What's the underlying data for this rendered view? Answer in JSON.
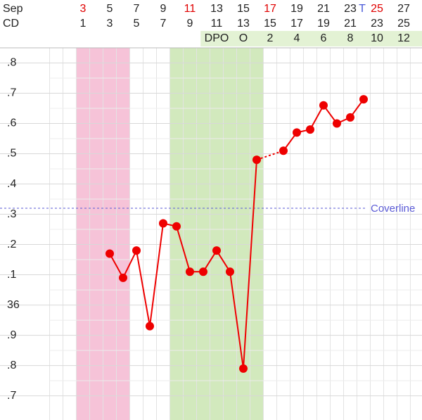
{
  "chart_data": {
    "type": "line",
    "month": "Sep",
    "cd_title": "CD",
    "xlim": [
      0.5,
      28.37
    ],
    "xticks": [
      3,
      5,
      7,
      9,
      11,
      13,
      15,
      17,
      19,
      21,
      23,
      25,
      27
    ],
    "xtick_colors": [
      "#e00000",
      "#222",
      "#222",
      "#222",
      "#e00000",
      "#222",
      "#222",
      "#e00000",
      "#222",
      "#222",
      "#222",
      "#e00000",
      "#222"
    ],
    "cd_labels": [
      1,
      3,
      5,
      7,
      9,
      11,
      13,
      15,
      17,
      19,
      21,
      23,
      25
    ],
    "dpo_labels": [
      "DPO",
      "O",
      2,
      4,
      6,
      8,
      10,
      12
    ],
    "temp_marker": {
      "x": 24,
      "label": "T",
      "color": "#4a5ad8"
    },
    "ylim": [
      35.62,
      36.85
    ],
    "yticks": [
      {
        "value": 36.8,
        "label": ".8"
      },
      {
        "value": 36.7,
        "label": ".7"
      },
      {
        "value": 36.6,
        "label": ".6"
      },
      {
        "value": 36.5,
        "label": ".5"
      },
      {
        "value": 36.4,
        "label": ".4"
      },
      {
        "value": 36.3,
        "label": ".3"
      },
      {
        "value": 36.2,
        "label": ".2"
      },
      {
        "value": 36.1,
        "label": ".1"
      },
      36,
      {
        "value": 35.9,
        "label": ".9"
      },
      {
        "value": 35.8,
        "label": ".8"
      },
      {
        "value": 35.7,
        "label": ".7"
      }
    ],
    "grid": true,
    "bands": [
      {
        "from": 3,
        "to": 6,
        "color": "#f6c3d8"
      },
      {
        "from": 10,
        "to": 16,
        "color": "#d2e9bd"
      }
    ],
    "coverline": {
      "value": 36.32,
      "label": "Coverline",
      "color": "#5b5bd6"
    },
    "color": "#ee0000",
    "x": [
      5,
      6,
      7,
      8,
      9,
      10,
      11,
      12,
      13,
      14,
      15,
      16,
      17,
      18,
      19,
      20,
      21,
      22,
      23,
      24
    ],
    "values": [
      36.17,
      36.09,
      36.18,
      35.93,
      36.27,
      36.26,
      36.11,
      36.11,
      36.18,
      36.11,
      35.79,
      36.48,
      null,
      36.51,
      36.57,
      36.58,
      36.66,
      36.6,
      36.62,
      36.68
    ]
  }
}
